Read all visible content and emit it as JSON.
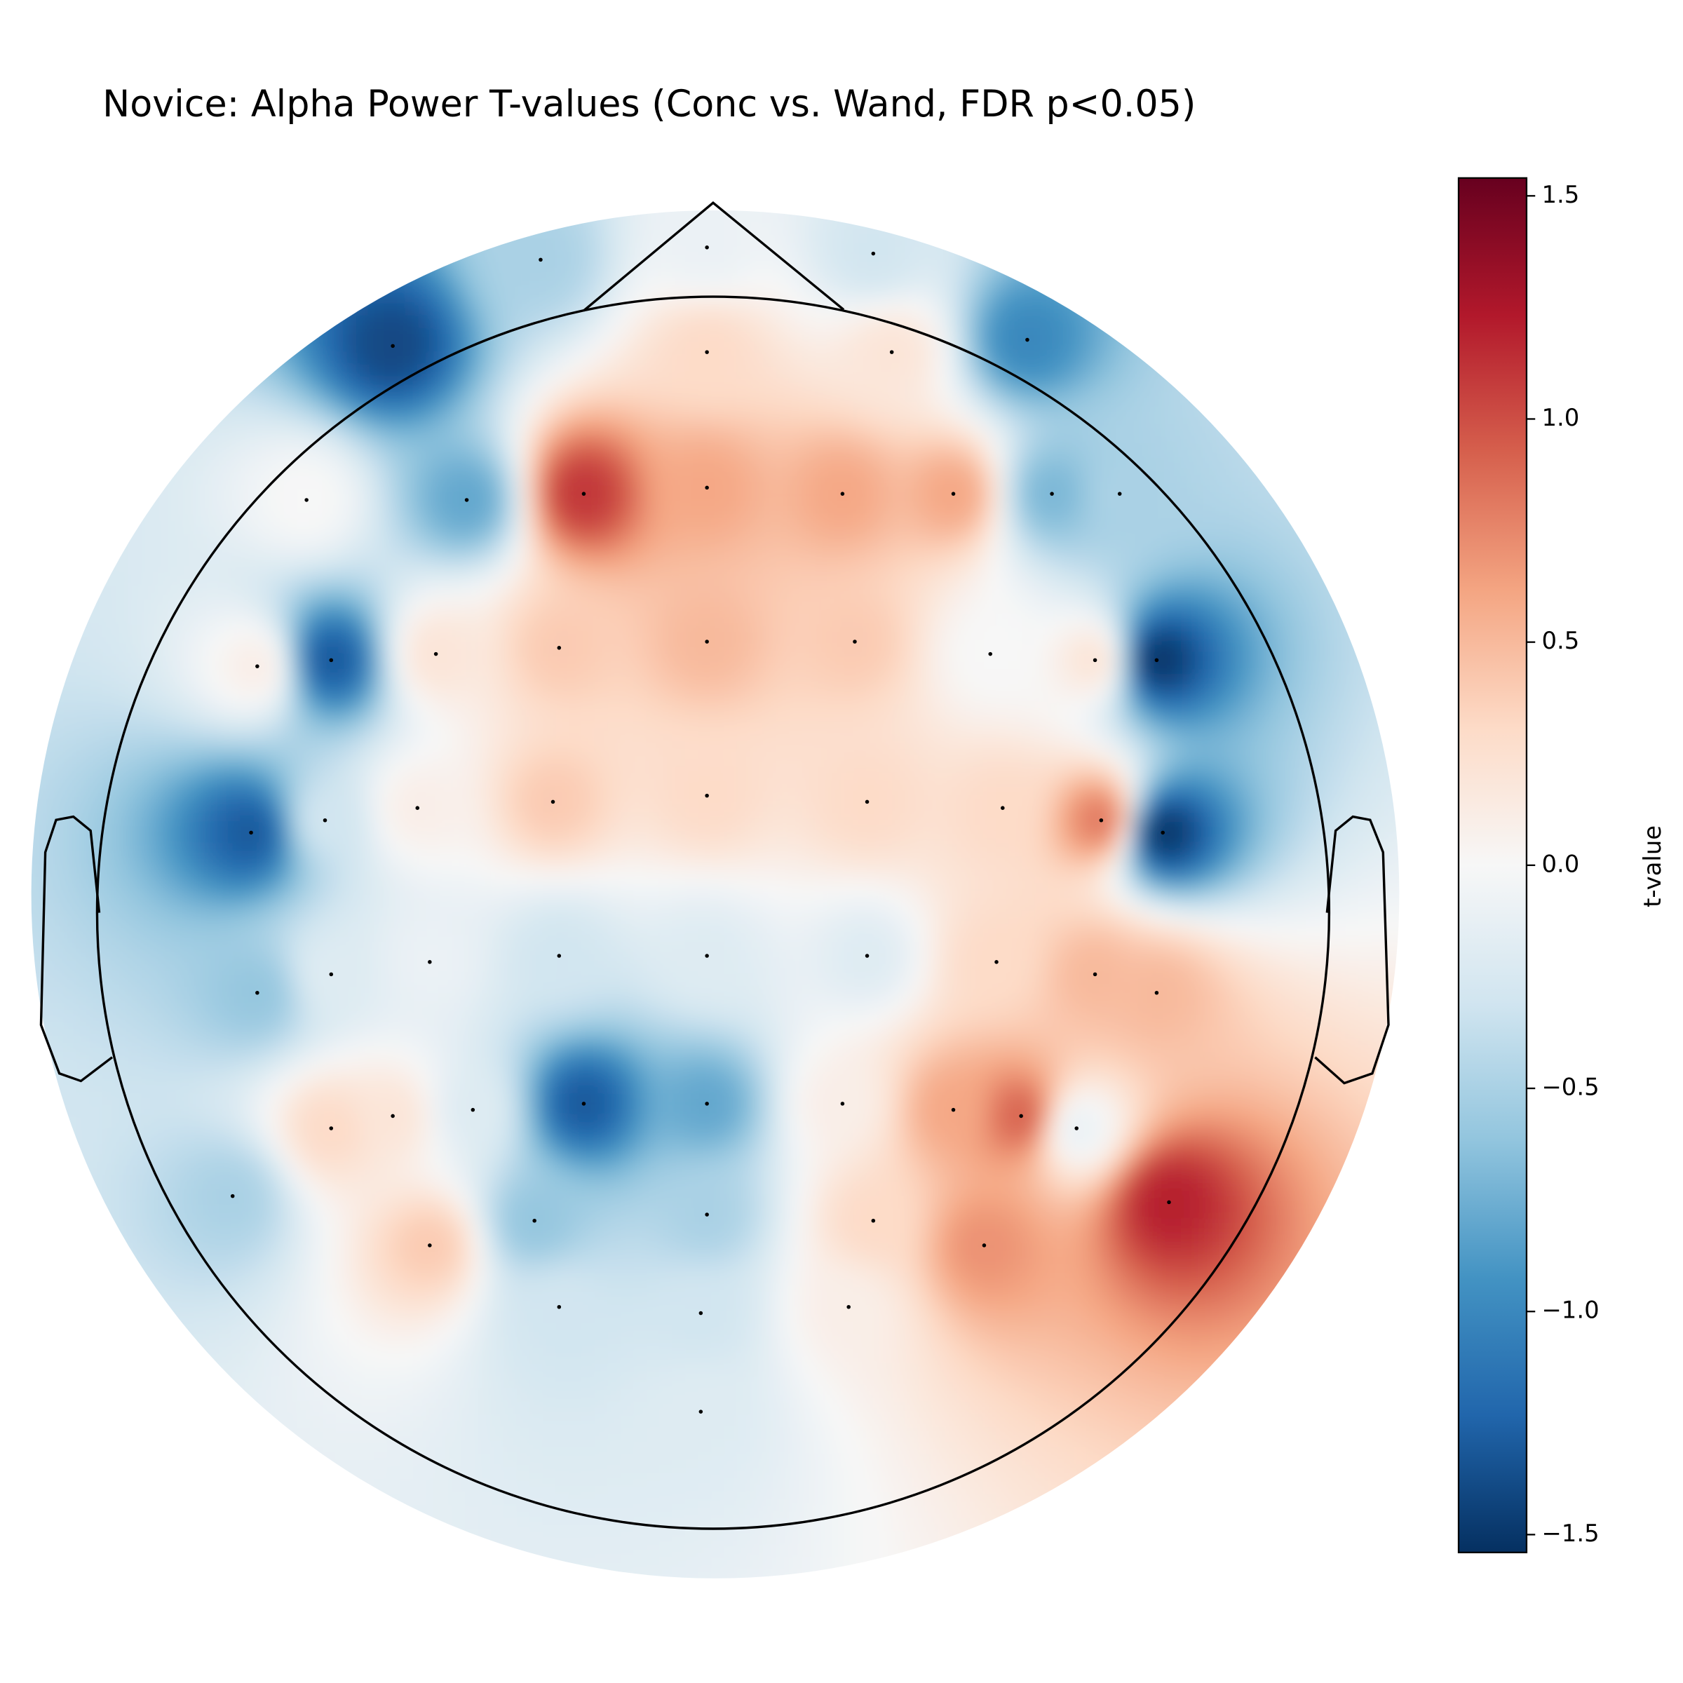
{
  "chart_data": {
    "type": "topomap",
    "title": "Novice: Alpha Power T-values (Conc vs. Wand, FDR p<0.05)",
    "colorbar_label": "t-value",
    "colormap": [
      "#053061",
      "#2166ac",
      "#4393c3",
      "#92c5de",
      "#d1e5f0",
      "#f7f7f7",
      "#fddbc7",
      "#f4a582",
      "#d6604d",
      "#b2182b",
      "#67001f"
    ],
    "clim": [
      -1.54,
      1.54
    ],
    "cticks": [
      {
        "value": -1.5,
        "label": "−1.5"
      },
      {
        "value": -1.0,
        "label": "−1.0"
      },
      {
        "value": -0.5,
        "label": "−0.5"
      },
      {
        "value": 0.0,
        "label": "0.0"
      },
      {
        "value": 0.5,
        "label": "0.5"
      },
      {
        "value": 1.0,
        "label": "1.0"
      },
      1.5
    ],
    "sensors": [
      {
        "x": -0.01,
        "y": 1.08,
        "value": -0.1
      },
      {
        "x": -0.28,
        "y": 1.06,
        "value": -0.5
      },
      {
        "x": 0.26,
        "y": 1.07,
        "value": -0.3
      },
      {
        "x": -0.52,
        "y": 0.92,
        "value": -1.4
      },
      {
        "x": -0.01,
        "y": 0.91,
        "value": 0.3
      },
      {
        "x": 0.29,
        "y": 0.91,
        "value": 0.2
      },
      {
        "x": 0.51,
        "y": 0.93,
        "value": -1.0
      },
      {
        "x": -0.66,
        "y": 0.67,
        "value": 0.0
      },
      {
        "x": -0.4,
        "y": 0.67,
        "value": -0.8
      },
      {
        "x": -0.21,
        "y": 0.68,
        "value": 1.1
      },
      {
        "x": -0.01,
        "y": 0.69,
        "value": 0.6
      },
      {
        "x": 0.21,
        "y": 0.68,
        "value": 0.6
      },
      {
        "x": 0.39,
        "y": 0.68,
        "value": 0.6
      },
      {
        "x": 0.55,
        "y": 0.68,
        "value": -0.7
      },
      {
        "x": 0.66,
        "y": 0.68,
        "value": -0.5
      },
      {
        "x": -0.74,
        "y": 0.4,
        "value": 0.1
      },
      {
        "x": -0.62,
        "y": 0.41,
        "value": -1.3
      },
      {
        "x": -0.45,
        "y": 0.42,
        "value": 0.2
      },
      {
        "x": -0.25,
        "y": 0.43,
        "value": 0.4
      },
      {
        "x": -0.01,
        "y": 0.44,
        "value": 0.5
      },
      {
        "x": 0.23,
        "y": 0.44,
        "value": 0.4
      },
      {
        "x": 0.45,
        "y": 0.42,
        "value": 0.0
      },
      {
        "x": 0.62,
        "y": 0.41,
        "value": 0.2
      },
      {
        "x": 0.72,
        "y": 0.41,
        "value": -1.5
      },
      {
        "x": -0.75,
        "y": 0.13,
        "value": -1.3
      },
      {
        "x": -0.63,
        "y": 0.15,
        "value": -0.3
      },
      {
        "x": -0.48,
        "y": 0.17,
        "value": 0.1
      },
      {
        "x": -0.26,
        "y": 0.18,
        "value": 0.4
      },
      {
        "x": -0.01,
        "y": 0.19,
        "value": 0.3
      },
      {
        "x": 0.25,
        "y": 0.18,
        "value": 0.3
      },
      {
        "x": 0.47,
        "y": 0.17,
        "value": 0.3
      },
      {
        "x": 0.63,
        "y": 0.15,
        "value": 0.8
      },
      {
        "x": 0.73,
        "y": 0.13,
        "value": -1.5
      },
      {
        "x": -0.74,
        "y": -0.13,
        "value": -0.6
      },
      {
        "x": -0.62,
        "y": -0.1,
        "value": -0.2
      },
      {
        "x": -0.46,
        "y": -0.08,
        "value": -0.1
      },
      {
        "x": -0.25,
        "y": -0.07,
        "value": -0.3
      },
      {
        "x": -0.01,
        "y": -0.07,
        "value": -0.2
      },
      {
        "x": 0.25,
        "y": -0.07,
        "value": -0.2
      },
      {
        "x": 0.46,
        "y": -0.08,
        "value": 0.3
      },
      {
        "x": 0.62,
        "y": -0.1,
        "value": 0.5
      },
      {
        "x": 0.72,
        "y": -0.13,
        "value": 0.5
      },
      {
        "x": -0.78,
        "y": -0.46,
        "value": -0.5
      },
      {
        "x": -0.62,
        "y": -0.35,
        "value": 0.3
      },
      {
        "x": -0.52,
        "y": -0.33,
        "value": 0.2
      },
      {
        "x": -0.39,
        "y": -0.32,
        "value": -0.2
      },
      {
        "x": -0.21,
        "y": -0.31,
        "value": -1.3
      },
      {
        "x": -0.01,
        "y": -0.31,
        "value": -0.8
      },
      {
        "x": 0.21,
        "y": -0.31,
        "value": 0.1
      },
      {
        "x": 0.39,
        "y": -0.32,
        "value": 0.6
      },
      {
        "x": 0.5,
        "y": -0.33,
        "value": 0.9
      },
      {
        "x": 0.59,
        "y": -0.35,
        "value": -0.1
      },
      {
        "x": 0.74,
        "y": -0.47,
        "value": 1.2
      },
      {
        "x": -0.46,
        "y": -0.54,
        "value": 0.4
      },
      {
        "x": -0.29,
        "y": -0.5,
        "value": -0.6
      },
      {
        "x": -0.01,
        "y": -0.49,
        "value": -0.5
      },
      {
        "x": 0.26,
        "y": -0.5,
        "value": 0.3
      },
      {
        "x": 0.44,
        "y": -0.54,
        "value": 0.7
      },
      {
        "x": -0.25,
        "y": -0.64,
        "value": -0.3
      },
      {
        "x": -0.02,
        "y": -0.65,
        "value": -0.3
      },
      {
        "x": 0.22,
        "y": -0.64,
        "value": 0.1
      },
      {
        "x": -0.02,
        "y": -0.81,
        "value": -0.2
      }
    ]
  }
}
